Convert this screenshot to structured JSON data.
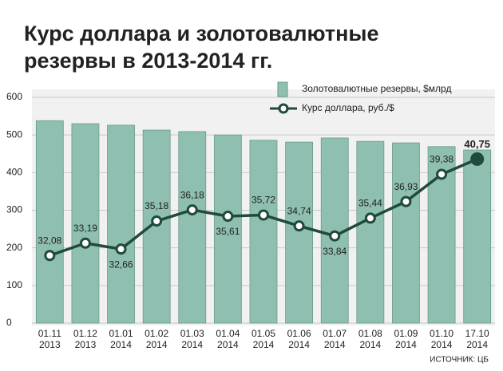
{
  "chart_data": {
    "type": "bar",
    "title": [
      "Курс доллара и золотовалютные",
      "резервы в 2013-2014 гг."
    ],
    "source": "ИСТОЧНИК: ЦБ",
    "categories": [
      [
        "01.11",
        "2013"
      ],
      [
        "01.12",
        "2013"
      ],
      [
        "01.01",
        "2014"
      ],
      [
        "01.02",
        "2014"
      ],
      [
        "01.03",
        "2014"
      ],
      [
        "01.04",
        "2014"
      ],
      [
        "01.05",
        "2014"
      ],
      [
        "01.06",
        "2014"
      ],
      [
        "01.07",
        "2014"
      ],
      [
        "01.08",
        "2014"
      ],
      [
        "01.09",
        "2014"
      ],
      [
        "01.10",
        "2014"
      ],
      [
        "17.10",
        "2014"
      ]
    ],
    "series": [
      {
        "name": "Золотовалютные резервы, $млрд",
        "color": "#8fbfb0",
        "values": [
          538,
          530,
          526,
          513,
          509,
          500,
          486,
          481,
          492,
          483,
          479,
          469,
          460
        ]
      },
      {
        "name": "Курс доллара, руб./$",
        "type": "line",
        "axis": "y2",
        "color": "#1f4a3c",
        "values": [
          32.08,
          33.19,
          32.66,
          35.18,
          36.18,
          35.61,
          35.72,
          34.74,
          33.84,
          35.44,
          36.93,
          39.38,
          40.75
        ],
        "value_labels": [
          "32,08",
          "33,19",
          "32,66",
          "35,18",
          "36,18",
          "35,61",
          "35,72",
          "34,74",
          "33,84",
          "35,44",
          "36,93",
          "39,38",
          "40,75"
        ]
      }
    ],
    "ylim": [
      0,
      600
    ],
    "yticks": [
      0,
      100,
      200,
      300,
      400,
      500,
      600
    ],
    "y2lim": [
      26,
      46.3
    ],
    "grid": true
  }
}
